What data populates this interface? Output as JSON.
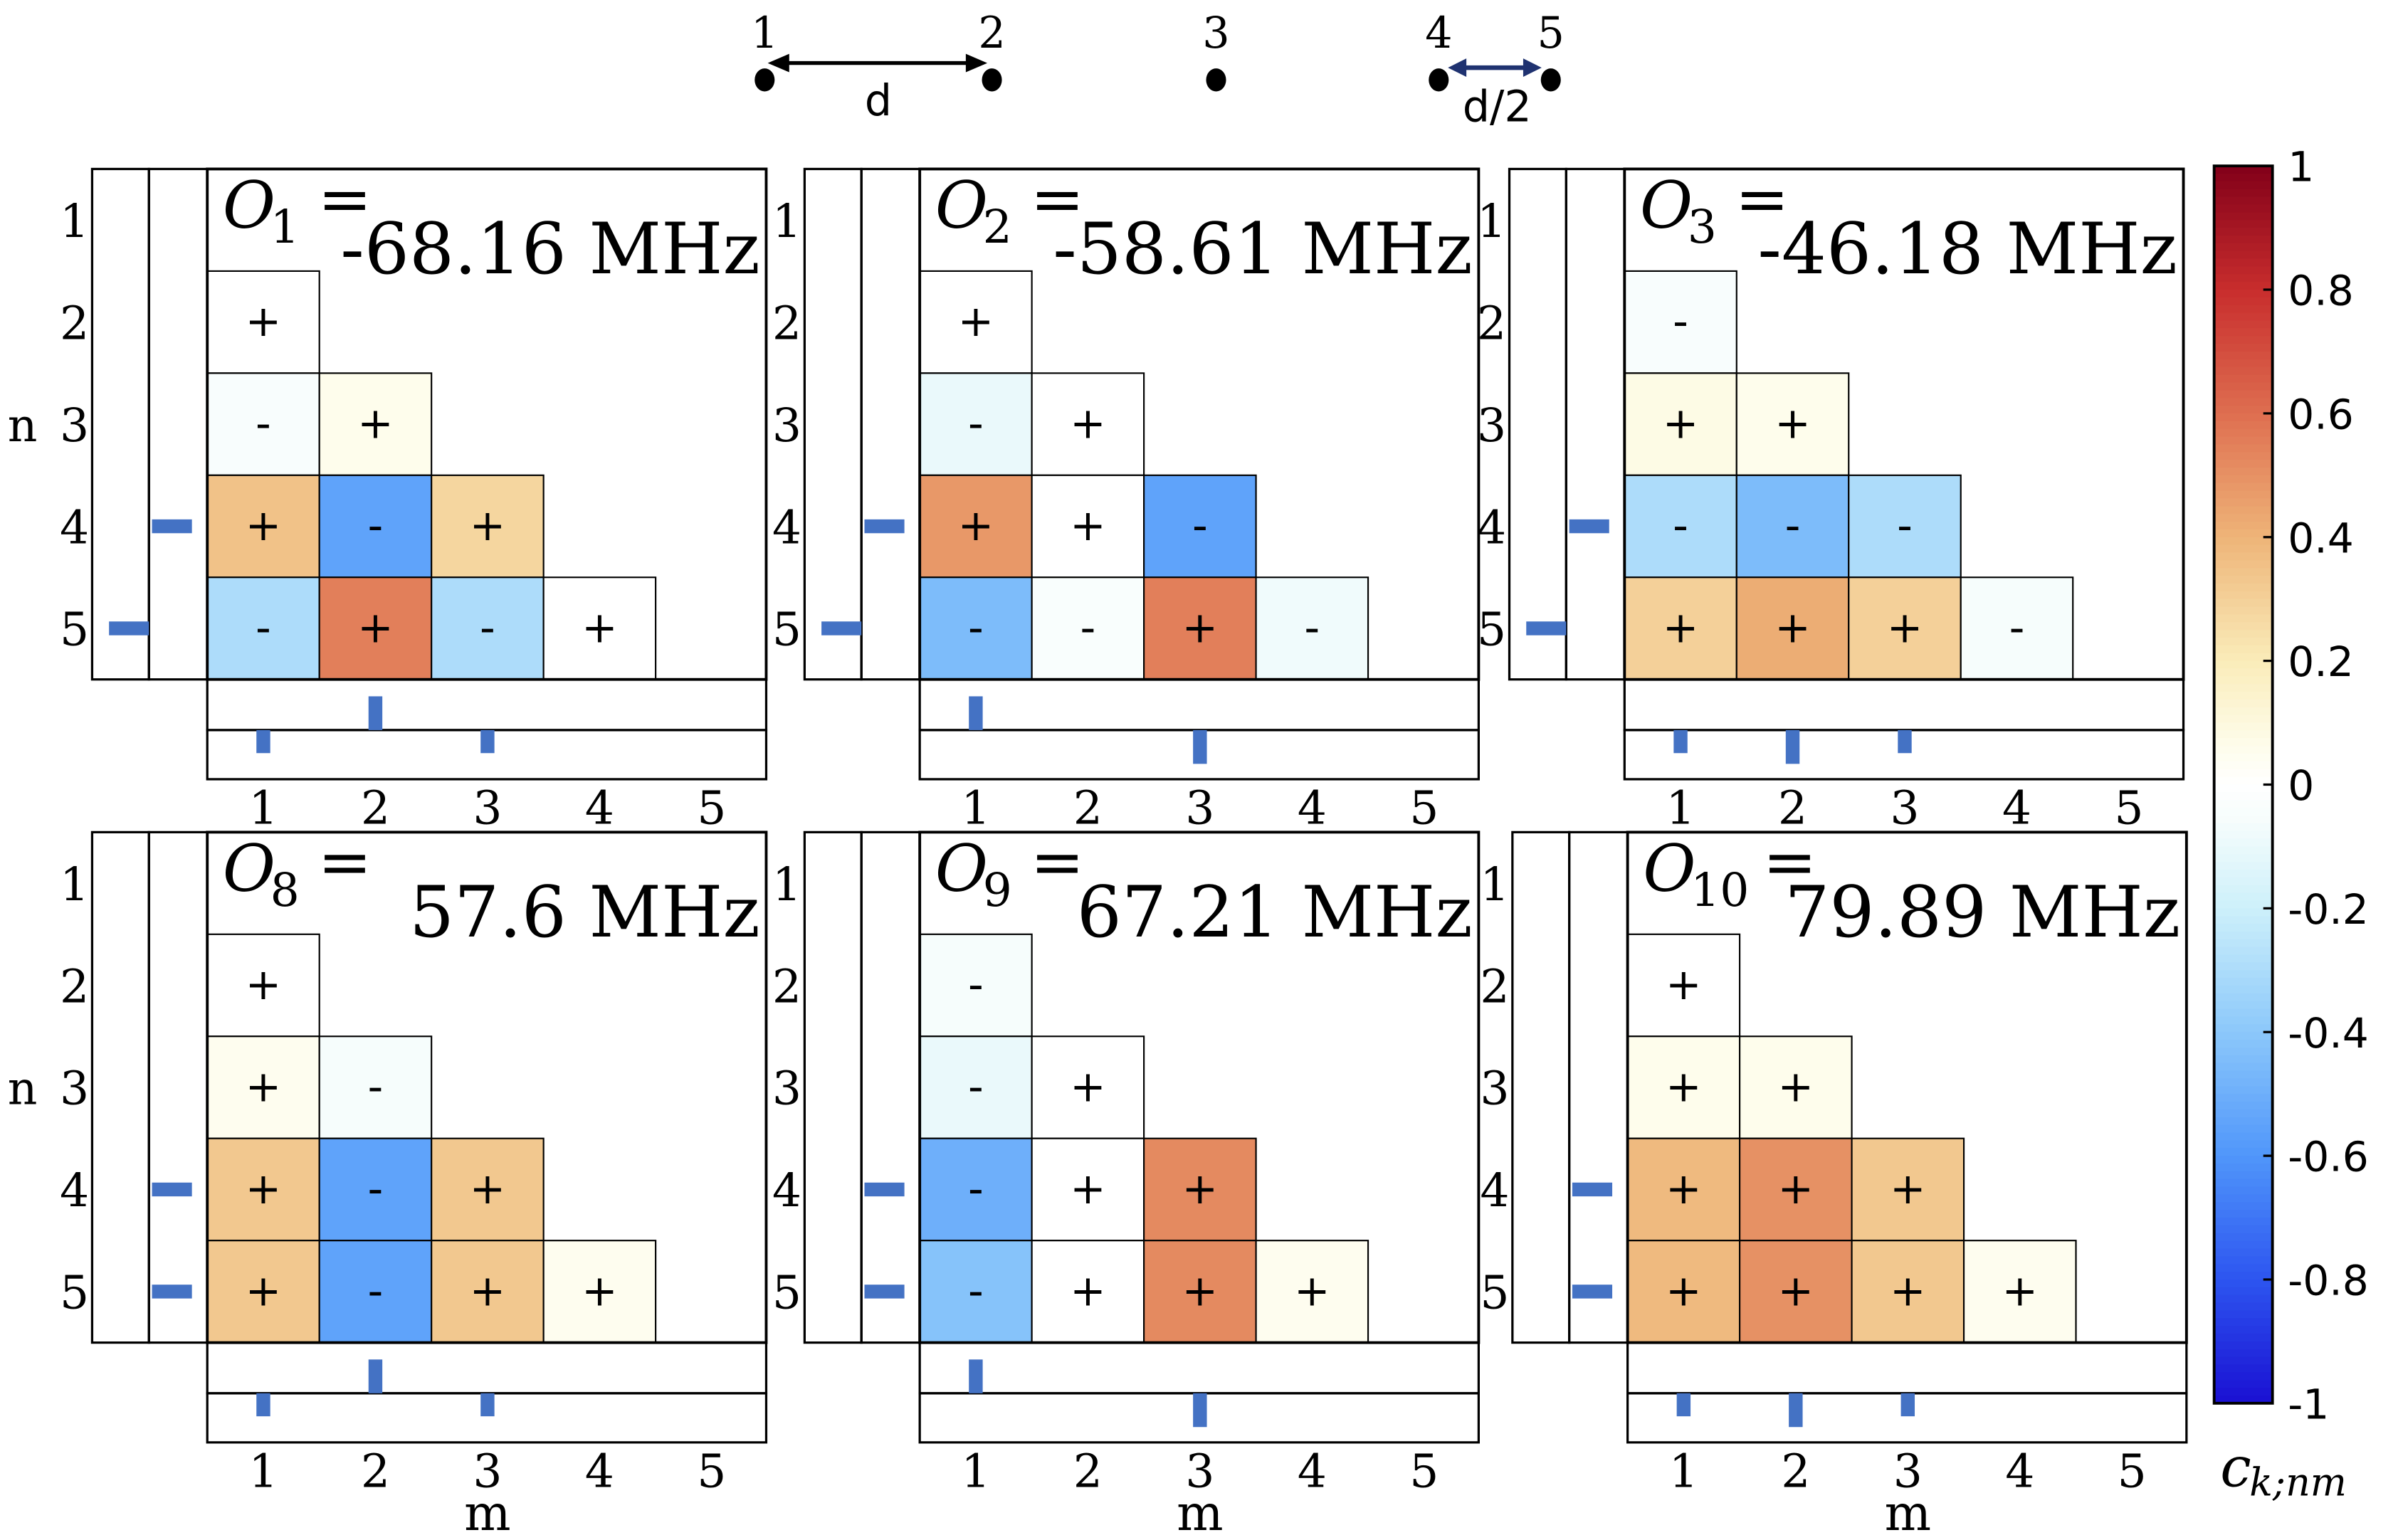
{
  "chart_data": {
    "type": "heatmap",
    "diagram": {
      "points": [
        "1",
        "2",
        "3",
        "4",
        "5"
      ],
      "spacing_labels": [
        "d",
        "d/2"
      ]
    },
    "axes": {
      "row_label": "n",
      "col_label": "m",
      "ticks": [
        "1",
        "2",
        "3",
        "4",
        "5"
      ]
    },
    "colorbar": {
      "label": "c",
      "label_sub": "k;nm",
      "ticks": [
        "1",
        "0.8",
        "0.6",
        "0.4",
        "0.2",
        "0",
        "-0.2",
        "-0.4",
        "-0.6",
        "-0.8",
        "-1"
      ],
      "range": [
        -1,
        1
      ]
    },
    "panels": [
      {
        "symbol": "O",
        "sub": "1",
        "eq": "=",
        "value": "-68.16 MHz",
        "cells": [
          {
            "n": 2,
            "m": 1,
            "value": 0.0,
            "sign": "+"
          },
          {
            "n": 3,
            "m": 1,
            "value": -0.05,
            "sign": "-"
          },
          {
            "n": 3,
            "m": 2,
            "value": 0.06,
            "sign": "+"
          },
          {
            "n": 4,
            "m": 1,
            "value": 0.35,
            "sign": "+"
          },
          {
            "n": 4,
            "m": 2,
            "value": -0.55,
            "sign": "-"
          },
          {
            "n": 4,
            "m": 3,
            "value": 0.28,
            "sign": "+"
          },
          {
            "n": 5,
            "m": 1,
            "value": -0.3,
            "sign": "-"
          },
          {
            "n": 5,
            "m": 2,
            "value": 0.55,
            "sign": "+"
          },
          {
            "n": 5,
            "m": 3,
            "value": -0.3,
            "sign": "-"
          },
          {
            "n": 5,
            "m": 4,
            "value": 0.0,
            "sign": "+"
          }
        ],
        "left_outer": [
          0,
          0,
          0,
          0,
          -0.5
        ],
        "left_inner": [
          0,
          0,
          0,
          0.5,
          0
        ],
        "bottom_top": [
          0,
          0.5,
          0,
          0,
          0
        ],
        "bottom_bottom": [
          -0.3,
          0,
          -0.3,
          0,
          0
        ]
      },
      {
        "symbol": "O",
        "sub": "2",
        "eq": "=",
        "value": "-58.61 MHz",
        "cells": [
          {
            "n": 2,
            "m": 1,
            "value": 0.0,
            "sign": "+"
          },
          {
            "n": 3,
            "m": 1,
            "value": -0.1,
            "sign": "-"
          },
          {
            "n": 3,
            "m": 2,
            "value": 0.0,
            "sign": "+"
          },
          {
            "n": 4,
            "m": 1,
            "value": 0.48,
            "sign": "+"
          },
          {
            "n": 4,
            "m": 2,
            "value": 0.0,
            "sign": "+"
          },
          {
            "n": 4,
            "m": 3,
            "value": -0.55,
            "sign": "-"
          },
          {
            "n": 5,
            "m": 1,
            "value": -0.45,
            "sign": "-"
          },
          {
            "n": 5,
            "m": 2,
            "value": -0.04,
            "sign": "-"
          },
          {
            "n": 5,
            "m": 3,
            "value": 0.55,
            "sign": "+"
          },
          {
            "n": 5,
            "m": 4,
            "value": -0.08,
            "sign": "-"
          }
        ],
        "left_outer": [
          0,
          0,
          0,
          0,
          -0.5
        ],
        "left_inner": [
          0,
          0,
          0,
          0.5,
          0
        ],
        "bottom_top": [
          0.5,
          0,
          0,
          0,
          0
        ],
        "bottom_bottom": [
          0,
          0,
          -0.5,
          0,
          0
        ]
      },
      {
        "symbol": "O",
        "sub": "3",
        "eq": "=",
        "value": "-46.18 MHz",
        "cells": [
          {
            "n": 2,
            "m": 1,
            "value": -0.05,
            "sign": "-"
          },
          {
            "n": 3,
            "m": 1,
            "value": 0.08,
            "sign": "+"
          },
          {
            "n": 3,
            "m": 2,
            "value": 0.06,
            "sign": "+"
          },
          {
            "n": 4,
            "m": 1,
            "value": -0.3,
            "sign": "-"
          },
          {
            "n": 4,
            "m": 2,
            "value": -0.45,
            "sign": "-"
          },
          {
            "n": 4,
            "m": 3,
            "value": -0.3,
            "sign": "-"
          },
          {
            "n": 5,
            "m": 1,
            "value": 0.3,
            "sign": "+"
          },
          {
            "n": 5,
            "m": 2,
            "value": 0.42,
            "sign": "+"
          },
          {
            "n": 5,
            "m": 3,
            "value": 0.3,
            "sign": "+"
          },
          {
            "n": 5,
            "m": 4,
            "value": -0.06,
            "sign": "-"
          }
        ],
        "left_outer": [
          0,
          0,
          0,
          0,
          -0.5
        ],
        "left_inner": [
          0,
          0,
          0,
          0.5,
          0
        ],
        "bottom_top": [
          0,
          0,
          0,
          0,
          0
        ],
        "bottom_bottom": [
          -0.3,
          -0.5,
          -0.3,
          0,
          0
        ]
      },
      {
        "symbol": "O",
        "sub": "8",
        "eq": "=",
        "value": "57.6 MHz",
        "cells": [
          {
            "n": 2,
            "m": 1,
            "value": 0.0,
            "sign": "+"
          },
          {
            "n": 3,
            "m": 1,
            "value": 0.05,
            "sign": "+"
          },
          {
            "n": 3,
            "m": 2,
            "value": -0.06,
            "sign": "-"
          },
          {
            "n": 4,
            "m": 1,
            "value": 0.33,
            "sign": "+"
          },
          {
            "n": 4,
            "m": 2,
            "value": -0.55,
            "sign": "-"
          },
          {
            "n": 4,
            "m": 3,
            "value": 0.33,
            "sign": "+"
          },
          {
            "n": 5,
            "m": 1,
            "value": 0.33,
            "sign": "+"
          },
          {
            "n": 5,
            "m": 2,
            "value": -0.55,
            "sign": "-"
          },
          {
            "n": 5,
            "m": 3,
            "value": 0.33,
            "sign": "+"
          },
          {
            "n": 5,
            "m": 4,
            "value": 0.05,
            "sign": "+"
          }
        ],
        "left_outer": [
          0,
          0,
          0,
          0,
          0
        ],
        "left_inner": [
          0,
          0,
          0,
          0.5,
          0.5
        ],
        "bottom_top": [
          0,
          0.5,
          0,
          0,
          0
        ],
        "bottom_bottom": [
          -0.3,
          0,
          -0.3,
          0,
          0
        ]
      },
      {
        "symbol": "O",
        "sub": "9",
        "eq": "=",
        "value": "67.21 MHz",
        "cells": [
          {
            "n": 2,
            "m": 1,
            "value": -0.06,
            "sign": "-"
          },
          {
            "n": 3,
            "m": 1,
            "value": -0.1,
            "sign": "-"
          },
          {
            "n": 3,
            "m": 2,
            "value": 0.0,
            "sign": "+"
          },
          {
            "n": 4,
            "m": 1,
            "value": -0.5,
            "sign": "-"
          },
          {
            "n": 4,
            "m": 2,
            "value": 0.0,
            "sign": "+"
          },
          {
            "n": 4,
            "m": 3,
            "value": 0.52,
            "sign": "+"
          },
          {
            "n": 5,
            "m": 1,
            "value": -0.42,
            "sign": "-"
          },
          {
            "n": 5,
            "m": 2,
            "value": 0.0,
            "sign": "+"
          },
          {
            "n": 5,
            "m": 3,
            "value": 0.52,
            "sign": "+"
          },
          {
            "n": 5,
            "m": 4,
            "value": 0.05,
            "sign": "+"
          }
        ],
        "left_outer": [
          0,
          0,
          0,
          0,
          0
        ],
        "left_inner": [
          0,
          0,
          0,
          0.5,
          0.5
        ],
        "bottom_top": [
          0.5,
          0,
          0,
          0,
          0
        ],
        "bottom_bottom": [
          0,
          0,
          -0.5,
          0,
          0
        ]
      },
      {
        "symbol": "O",
        "sub": "10",
        "eq": "=",
        "value": "79.89 MHz",
        "cells": [
          {
            "n": 2,
            "m": 1,
            "value": 0.0,
            "sign": "+"
          },
          {
            "n": 3,
            "m": 1,
            "value": 0.06,
            "sign": "+"
          },
          {
            "n": 3,
            "m": 2,
            "value": 0.06,
            "sign": "+"
          },
          {
            "n": 4,
            "m": 1,
            "value": 0.38,
            "sign": "+"
          },
          {
            "n": 4,
            "m": 2,
            "value": 0.5,
            "sign": "+"
          },
          {
            "n": 4,
            "m": 3,
            "value": 0.33,
            "sign": "+"
          },
          {
            "n": 5,
            "m": 1,
            "value": 0.38,
            "sign": "+"
          },
          {
            "n": 5,
            "m": 2,
            "value": 0.5,
            "sign": "+"
          },
          {
            "n": 5,
            "m": 3,
            "value": 0.33,
            "sign": "+"
          },
          {
            "n": 5,
            "m": 4,
            "value": 0.05,
            "sign": "+"
          }
        ],
        "left_outer": [
          0,
          0,
          0,
          0,
          0
        ],
        "left_inner": [
          0,
          0,
          0,
          0.5,
          0.5
        ],
        "bottom_top": [
          0,
          0,
          0,
          0,
          0
        ],
        "bottom_bottom": [
          -0.3,
          -0.5,
          -0.3,
          0,
          0
        ]
      }
    ]
  }
}
